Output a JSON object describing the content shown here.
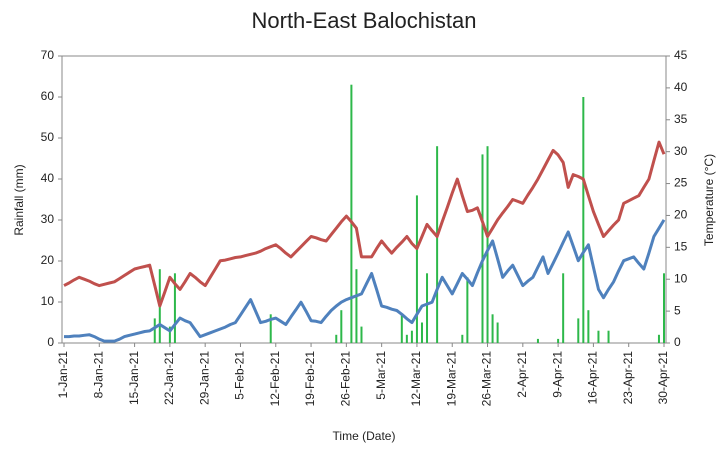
{
  "chart_data": {
    "type": "bar_line",
    "title": "North-East Balochistan",
    "ylabel": "Rainfall (mm)",
    "y2label": "Temperature (°C)",
    "xlabel": "Time (Date)",
    "categories": [
      "1-Jan-21",
      null,
      null,
      null,
      null,
      null,
      null,
      "8-Jan-21",
      null,
      null,
      null,
      null,
      null,
      null,
      "15-Jan-21",
      null,
      null,
      null,
      null,
      null,
      null,
      "22-Jan-21",
      null,
      null,
      null,
      null,
      null,
      null,
      "29-Jan-21",
      null,
      null,
      null,
      null,
      null,
      null,
      "5-Feb-21",
      null,
      null,
      null,
      null,
      null,
      null,
      "12-Feb-21",
      null,
      null,
      null,
      null,
      null,
      null,
      "19-Feb-21",
      null,
      null,
      null,
      null,
      null,
      null,
      "26-Feb-21",
      null,
      null,
      null,
      null,
      null,
      null,
      "5-Mar-21",
      null,
      null,
      null,
      null,
      null,
      null,
      "12-Mar-21",
      null,
      null,
      null,
      null,
      null,
      null,
      "19-Mar-21",
      null,
      null,
      null,
      null,
      null,
      null,
      "26-Mar-21",
      null,
      null,
      null,
      null,
      null,
      null,
      "2-Apr-21",
      null,
      null,
      null,
      null,
      null,
      null,
      "9-Apr-21",
      null,
      null,
      null,
      null,
      null,
      null,
      "16-Apr-21",
      null,
      null,
      null,
      null,
      null,
      null,
      "23-Apr-21",
      null,
      null,
      null,
      null,
      null,
      null,
      "30-Apr-21"
    ],
    "series": [
      {
        "kind": "bar",
        "color": "#2db84a",
        "values": [
          0,
          0,
          0,
          0,
          0,
          0,
          0,
          0,
          0,
          0,
          0,
          0,
          0,
          0,
          0,
          0,
          0,
          0,
          6,
          18,
          0,
          4,
          17,
          0,
          0,
          0,
          0,
          0,
          0,
          0,
          0,
          0,
          0,
          0,
          0,
          0,
          0,
          0,
          0,
          0,
          0,
          7,
          0,
          0,
          0,
          0,
          0,
          0,
          0,
          0,
          0,
          0,
          0,
          0,
          2,
          8,
          0,
          63,
          18,
          4,
          0,
          0,
          0,
          0,
          0,
          0,
          0,
          7,
          2,
          3,
          36,
          5,
          17,
          0,
          48,
          0,
          0,
          0,
          0,
          2,
          16,
          0,
          0,
          46,
          48,
          7,
          5,
          0,
          0,
          0,
          0,
          0,
          0,
          0,
          1,
          0,
          0,
          0,
          1,
          17,
          0,
          0,
          6,
          60,
          8,
          0,
          3,
          0,
          3,
          0,
          0,
          0,
          0,
          0,
          0,
          0,
          0,
          0,
          2,
          17
        ]
      },
      {
        "kind": "line",
        "axis": "y2",
        "color": "#c0504d",
        "values": [
          9.0,
          9.4,
          9.9,
          10.3,
          10.0,
          9.7,
          9.3,
          9.0,
          9.2,
          9.4,
          9.6,
          10.1,
          10.6,
          11.1,
          11.6,
          11.8,
          12.0,
          12.2,
          9.0,
          5.8,
          8.0,
          10.3,
          9.3,
          8.4,
          9.6,
          10.9,
          10.3,
          9.6,
          9.0,
          10.3,
          11.6,
          12.9,
          13.0,
          13.2,
          13.4,
          13.5,
          13.7,
          13.9,
          14.1,
          14.4,
          14.8,
          15.1,
          15.4,
          14.8,
          14.1,
          13.5,
          14.3,
          15.1,
          15.9,
          16.7,
          16.5,
          16.2,
          16.0,
          17.0,
          18.0,
          19.0,
          19.9,
          19.0,
          18.0,
          13.5,
          13.5,
          13.5,
          14.8,
          16.0,
          15.0,
          14.1,
          15.0,
          15.8,
          16.7,
          15.6,
          14.8,
          16.7,
          18.6,
          17.6,
          16.7,
          19.0,
          21.2,
          23.5,
          25.7,
          23.1,
          20.6,
          20.8,
          21.2,
          19.0,
          16.7,
          18.0,
          19.3,
          20.4,
          21.4,
          22.5,
          22.2,
          21.9,
          23.2,
          24.4,
          25.7,
          27.2,
          28.7,
          30.2,
          29.5,
          28.3,
          24.4,
          26.4,
          26.1,
          25.7,
          23.1,
          20.6,
          18.6,
          16.7,
          17.6,
          18.5,
          19.3,
          21.9,
          22.3,
          22.7,
          23.1,
          24.4,
          25.7,
          28.6,
          31.5,
          29.6
        ]
      },
      {
        "kind": "line",
        "axis": "y2",
        "color": "#4f81bd",
        "values": [
          1.0,
          1.0,
          1.1,
          1.1,
          1.2,
          1.3,
          1.0,
          0.6,
          0.3,
          0.3,
          0.3,
          0.6,
          1.0,
          1.2,
          1.4,
          1.6,
          1.8,
          1.9,
          2.4,
          2.9,
          2.4,
          1.9,
          2.9,
          3.9,
          3.5,
          3.2,
          2.1,
          1.0,
          1.3,
          1.6,
          1.9,
          2.2,
          2.5,
          2.9,
          3.2,
          4.4,
          5.6,
          6.8,
          5.0,
          3.2,
          3.4,
          3.7,
          3.9,
          3.4,
          2.9,
          4.1,
          5.2,
          6.4,
          5.0,
          3.5,
          3.4,
          3.2,
          4.2,
          5.1,
          5.8,
          6.4,
          6.8,
          7.1,
          7.4,
          7.7,
          9.3,
          10.9,
          8.4,
          5.8,
          5.6,
          5.3,
          5.1,
          4.5,
          3.8,
          3.2,
          4.5,
          5.8,
          6.1,
          6.4,
          8.4,
          10.3,
          9.0,
          7.7,
          9.3,
          10.9,
          10.0,
          9.0,
          11.0,
          12.9,
          14.5,
          16.0,
          13.2,
          10.3,
          11.3,
          12.2,
          10.6,
          9.0,
          9.7,
          10.3,
          11.9,
          13.5,
          10.9,
          12.5,
          14.1,
          15.8,
          17.4,
          15.2,
          12.9,
          14.2,
          15.4,
          11.9,
          8.4,
          7.1,
          8.4,
          9.6,
          11.3,
          12.9,
          13.2,
          13.5,
          12.5,
          11.6,
          14.1,
          16.7,
          18.0,
          19.3
        ]
      }
    ],
    "ylim": [
      0,
      70
    ],
    "yticks": [
      0,
      10,
      20,
      30,
      40,
      50,
      60,
      70
    ],
    "y2lim": [
      0,
      45
    ],
    "y2ticks": [
      0,
      5,
      10,
      15,
      20,
      25,
      30,
      35,
      40,
      45
    ],
    "grid": false
  }
}
